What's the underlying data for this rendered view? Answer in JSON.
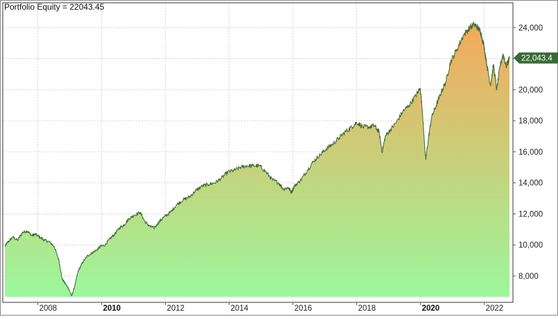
{
  "chart_data": {
    "type": "area",
    "title": "Portfolio Equity = 22043.45",
    "xlabel": "",
    "ylabel": "",
    "xlim": [
      2006.9,
      2022.9
    ],
    "ylim": [
      6300,
      25600
    ],
    "grid": true,
    "y_ticks": [
      {
        "value": 8000,
        "label": "8,000"
      },
      {
        "value": 10000,
        "label": "10,000"
      },
      {
        "value": 12000,
        "label": "12,000"
      },
      {
        "value": 14000,
        "label": "14,000"
      },
      {
        "value": 16000,
        "label": "16,000"
      },
      {
        "value": 18000,
        "label": "18,000"
      },
      {
        "value": 20000,
        "label": "20,000"
      },
      {
        "value": 22000,
        "label": "22,000"
      },
      {
        "value": 24000,
        "label": "24,000"
      }
    ],
    "x_ticks": [
      {
        "value": 2008,
        "label": "2008",
        "bold": false
      },
      {
        "value": 2010,
        "label": "2010",
        "bold": true
      },
      {
        "value": 2012,
        "label": "2012",
        "bold": false
      },
      {
        "value": 2014,
        "label": "2014",
        "bold": false
      },
      {
        "value": 2016,
        "label": "2016",
        "bold": false
      },
      {
        "value": 2018,
        "label": "2018",
        "bold": false
      },
      {
        "value": 2020,
        "label": "2020",
        "bold": true
      },
      {
        "value": 2022,
        "label": "2022",
        "bold": false
      }
    ],
    "last_value": 22043.45,
    "last_value_label": "22,043.4",
    "colors": {
      "line": "#3a6b35",
      "fill_top": "#f5a85a",
      "fill_bottom": "#9cf79c",
      "grid": "#c8c8c8",
      "marker": "#3a6b35"
    },
    "series": [
      {
        "x": [
          2007.0,
          2007.1,
          2007.25,
          2007.4,
          2007.55,
          2007.7,
          2007.85,
          2007.95,
          2008.1,
          2008.25,
          2008.4,
          2008.55,
          2008.7,
          2008.8,
          2008.9,
          2009.0,
          2009.1,
          2009.2,
          2009.3,
          2009.45,
          2009.6,
          2009.75,
          2009.9,
          2010.0,
          2010.15,
          2010.3,
          2010.45,
          2010.6,
          2010.75,
          2010.9,
          2011.05,
          2011.25,
          2011.4,
          2011.55,
          2011.7,
          2011.85,
          2012.0,
          2012.2,
          2012.4,
          2012.6,
          2012.8,
          2013.0,
          2013.2,
          2013.4,
          2013.6,
          2013.8,
          2014.0,
          2014.2,
          2014.4,
          2014.6,
          2014.8,
          2015.0,
          2015.2,
          2015.4,
          2015.6,
          2015.75,
          2015.9,
          2016.0,
          2016.1,
          2016.3,
          2016.5,
          2016.7,
          2016.9,
          2017.1,
          2017.3,
          2017.5,
          2017.7,
          2017.9,
          2018.05,
          2018.25,
          2018.45,
          2018.6,
          2018.75,
          2018.85,
          2018.95,
          2019.1,
          2019.3,
          2019.5,
          2019.7,
          2019.9,
          2020.05,
          2020.12,
          2020.18,
          2020.22,
          2020.3,
          2020.4,
          2020.55,
          2020.7,
          2020.85,
          2021.0,
          2021.2,
          2021.4,
          2021.6,
          2021.75,
          2021.85,
          2021.95,
          2022.05,
          2022.15,
          2022.25,
          2022.35,
          2022.45,
          2022.55,
          2022.65,
          2022.75,
          2022.85
        ],
        "y": [
          9900,
          10200,
          10500,
          10300,
          10800,
          10900,
          10600,
          10700,
          10500,
          10300,
          10200,
          9900,
          9000,
          7800,
          7500,
          7200,
          6700,
          7400,
          8300,
          8900,
          9300,
          9500,
          9700,
          9900,
          10000,
          10400,
          10700,
          11100,
          11300,
          11700,
          11900,
          12100,
          11500,
          11200,
          11100,
          11500,
          11800,
          12100,
          12600,
          12900,
          13100,
          13500,
          13800,
          13900,
          14000,
          14300,
          14700,
          14800,
          15000,
          15100,
          15100,
          15100,
          14700,
          14200,
          14000,
          13600,
          13700,
          13400,
          13800,
          14200,
          14800,
          15400,
          15800,
          16200,
          16500,
          16900,
          17300,
          17600,
          17900,
          17600,
          17600,
          17700,
          17300,
          16000,
          17000,
          17400,
          17900,
          18600,
          19000,
          19600,
          20100,
          18500,
          16500,
          15500,
          16800,
          18200,
          19000,
          19800,
          20500,
          21800,
          22600,
          23500,
          24000,
          24200,
          24000,
          23700,
          22800,
          21500,
          20300,
          21600,
          20000,
          21500,
          22300,
          21500,
          22043
        ]
      }
    ]
  }
}
